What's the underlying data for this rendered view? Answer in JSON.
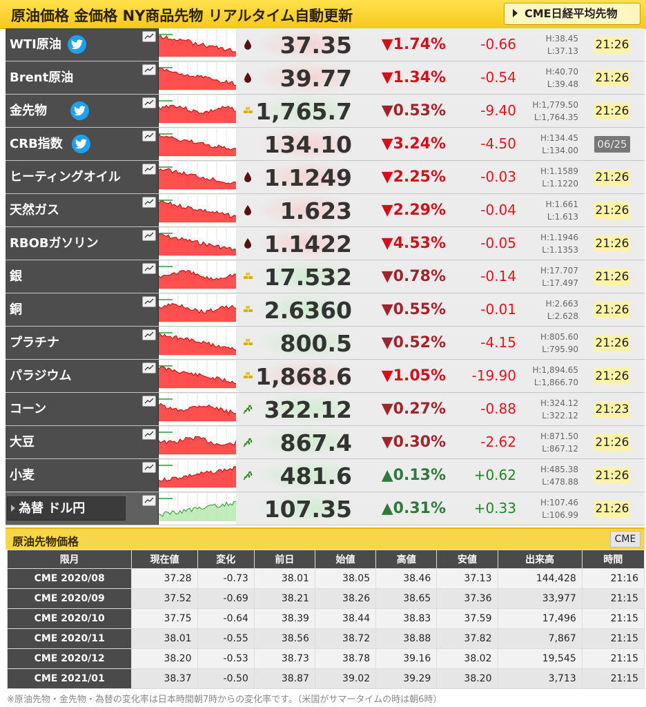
{
  "header": {
    "title": "原油価格 金価格 NY商品先物 リアルタイム自動更新",
    "cme_button": "CME日経平均先物"
  },
  "colors": {
    "accent": "#f7c81b",
    "down": "#d0101a",
    "up": "#2c8a1f"
  },
  "rows": [
    {
      "name": "WTI原油",
      "twitter": true,
      "icon": "oil-drop-icon",
      "price": "37.35",
      "pct": "1.74%",
      "dir": "down",
      "strong": true,
      "diff": "-0.66",
      "high": "H:38.45",
      "low": "L:37.13",
      "time": "21:26",
      "trend": "down"
    },
    {
      "name": "Brent原油",
      "twitter": false,
      "icon": "oil-drop-icon",
      "price": "39.77",
      "pct": "1.34%",
      "dir": "down",
      "strong": true,
      "diff": "-0.54",
      "high": "H:40.70",
      "low": "L:39.48",
      "time": "21:26",
      "trend": "down"
    },
    {
      "name": "金先物",
      "twitter": true,
      "icon": "gold-bars-icon",
      "price": "1,765.7",
      "pct": "0.53%",
      "dir": "down",
      "strong": false,
      "diff": "-9.40",
      "high": "H:1,779.50",
      "low": "L:1,764.35",
      "time": "21:26",
      "trend": "flat"
    },
    {
      "name": "CRB指数",
      "twitter": true,
      "icon": "",
      "price": "134.10",
      "pct": "3.24%",
      "dir": "down",
      "strong": true,
      "diff": "-4.50",
      "high": "H:134.45",
      "low": "L:134.00",
      "time": "06/25",
      "old": true,
      "trend": "down"
    },
    {
      "name": "ヒーティングオイル",
      "twitter": false,
      "icon": "oil-drop-icon",
      "price": "1.1249",
      "pct": "2.25%",
      "dir": "down",
      "strong": true,
      "diff": "-0.03",
      "high": "H:1.1589",
      "low": "L:1.1220",
      "time": "21:26",
      "trend": "down"
    },
    {
      "name": "天然ガス",
      "twitter": false,
      "icon": "oil-drop-icon",
      "price": "1.623",
      "pct": "2.29%",
      "dir": "down",
      "strong": true,
      "diff": "-0.04",
      "high": "H:1.661",
      "low": "L:1.613",
      "time": "21:26",
      "trend": "down"
    },
    {
      "name": "RBOBガソリン",
      "twitter": false,
      "icon": "oil-drop-icon",
      "price": "1.1422",
      "pct": "4.53%",
      "dir": "down",
      "strong": true,
      "diff": "-0.05",
      "high": "H:1.1946",
      "low": "L:1.1353",
      "time": "21:26",
      "trend": "down"
    },
    {
      "name": "銀",
      "twitter": false,
      "icon": "gold-bars-icon",
      "price": "17.532",
      "pct": "0.78%",
      "dir": "down",
      "strong": false,
      "diff": "-0.14",
      "high": "H:17.707",
      "low": "L:17.497",
      "time": "21:26",
      "trend": "flat"
    },
    {
      "name": "銅",
      "twitter": false,
      "icon": "gold-bars-icon",
      "price": "2.6360",
      "pct": "0.55%",
      "dir": "down",
      "strong": false,
      "diff": "-0.01",
      "high": "H:2.663",
      "low": "L:2.628",
      "time": "21:26",
      "trend": "flat"
    },
    {
      "name": "プラチナ",
      "twitter": false,
      "icon": "gold-bars-icon",
      "price": "800.5",
      "pct": "0.52%",
      "dir": "down",
      "strong": false,
      "diff": "-4.15",
      "high": "H:805.60",
      "low": "L:795.90",
      "time": "21:26",
      "trend": "down"
    },
    {
      "name": "パラジウム",
      "twitter": false,
      "icon": "gold-bars-icon",
      "price": "1,868.6",
      "pct": "1.05%",
      "dir": "down",
      "strong": true,
      "diff": "-19.90",
      "high": "H:1,894.65",
      "low": "L:1,866.70",
      "time": "21:26",
      "trend": "down"
    },
    {
      "name": "コーン",
      "twitter": false,
      "icon": "wheat-icon",
      "price": "322.12",
      "pct": "0.27%",
      "dir": "down",
      "strong": false,
      "diff": "-0.88",
      "high": "H:324.12",
      "low": "L:322.12",
      "time": "21:23",
      "trend": "flat"
    },
    {
      "name": "大豆",
      "twitter": false,
      "icon": "wheat-icon",
      "price": "867.4",
      "pct": "0.30%",
      "dir": "down",
      "strong": false,
      "diff": "-2.62",
      "high": "H:871.50",
      "low": "L:867.12",
      "time": "21:26",
      "trend": "flat"
    },
    {
      "name": "小麦",
      "twitter": false,
      "icon": "wheat-icon",
      "price": "481.6",
      "pct": "0.13%",
      "dir": "up",
      "strong": false,
      "diff": "+0.62",
      "high": "H:485.38",
      "low": "L:478.88",
      "time": "21:26",
      "trend": "up"
    },
    {
      "name": "為替 ドル円",
      "fx": true,
      "twitter": false,
      "icon": "",
      "price": "107.35",
      "pct": "0.31%",
      "dir": "up",
      "strong": false,
      "diff": "+0.33",
      "high": "H:107.46",
      "low": "L:106.99",
      "time": "21:26",
      "trend": "upgreen"
    }
  ],
  "section2": {
    "title": "原油先物価格",
    "button": "CME"
  },
  "table": {
    "headers": [
      "限月",
      "現在値",
      "変化",
      "前日",
      "始値",
      "高値",
      "安値",
      "出来高",
      "時間"
    ],
    "rows": [
      [
        "CME 2020/08",
        "37.28",
        "-0.73",
        "38.01",
        "38.05",
        "38.46",
        "37.13",
        "144,428",
        "21:16"
      ],
      [
        "CME 2020/09",
        "37.52",
        "-0.69",
        "38.21",
        "38.26",
        "38.65",
        "37.36",
        "33,977",
        "21:15"
      ],
      [
        "CME 2020/10",
        "37.75",
        "-0.64",
        "38.39",
        "38.44",
        "38.83",
        "37.59",
        "17,496",
        "21:15"
      ],
      [
        "CME 2020/11",
        "38.01",
        "-0.55",
        "38.56",
        "38.72",
        "38.88",
        "37.82",
        "7,867",
        "21:15"
      ],
      [
        "CME 2020/12",
        "38.20",
        "-0.53",
        "38.73",
        "38.78",
        "39.16",
        "38.02",
        "19,545",
        "21:15"
      ],
      [
        "CME 2021/01",
        "38.37",
        "-0.50",
        "38.87",
        "39.02",
        "39.29",
        "38.20",
        "3,713",
        "21:15"
      ]
    ]
  },
  "footer": "※原油先物・金先物・為替の変化率は日本時間朝7時からの変化率です。（米国がサマータイムの時は朝6時）"
}
